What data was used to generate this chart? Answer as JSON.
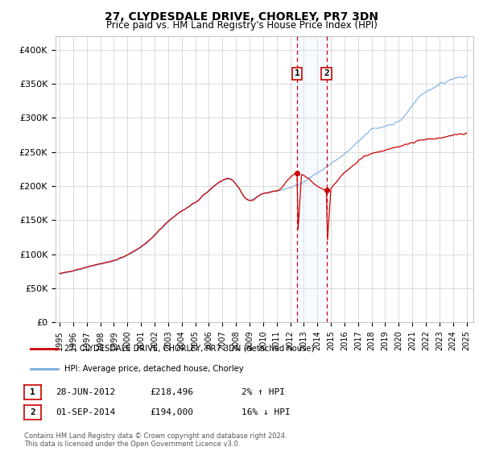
{
  "title": "27, CLYDESDALE DRIVE, CHORLEY, PR7 3DN",
  "subtitle": "Price paid vs. HM Land Registry's House Price Index (HPI)",
  "legend_label_red": "27, CLYDESDALE DRIVE, CHORLEY, PR7 3DN (detached house)",
  "legend_label_blue": "HPI: Average price, detached house, Chorley",
  "annotation1_label": "1",
  "annotation1_date": "28-JUN-2012",
  "annotation1_price": "£218,496",
  "annotation1_hpi": "2% ↑ HPI",
  "annotation1_year": 2012.5,
  "annotation1_value": 218496,
  "annotation2_label": "2",
  "annotation2_date": "01-SEP-2014",
  "annotation2_price": "£194,000",
  "annotation2_hpi": "16% ↓ HPI",
  "annotation2_year": 2014.67,
  "annotation2_value": 194000,
  "footer1": "Contains HM Land Registry data © Crown copyright and database right 2024.",
  "footer2": "This data is licensed under the Open Government Licence v3.0.",
  "ylim": [
    0,
    420000
  ],
  "yticks": [
    0,
    50000,
    100000,
    150000,
    200000,
    250000,
    300000,
    350000,
    400000
  ],
  "ytick_labels": [
    "£0",
    "£50K",
    "£100K",
    "£150K",
    "£200K",
    "£250K",
    "£300K",
    "£350K",
    "£400K"
  ],
  "background_color": "#ffffff",
  "grid_color": "#cccccc",
  "red_color": "#cc0000",
  "blue_color": "#7aade0",
  "shade_color": "#ddeeff"
}
